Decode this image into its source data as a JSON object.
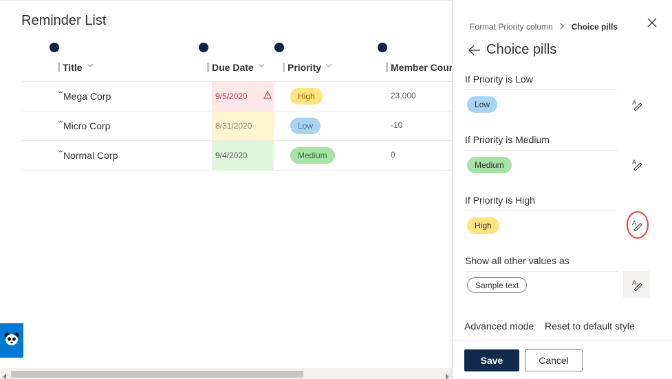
{
  "list": {
    "title": "Reminder List",
    "columns": [
      {
        "label": "Title"
      },
      {
        "label": "Due Date"
      },
      {
        "label": "Priority"
      },
      {
        "label": "Member Coun"
      }
    ],
    "rows": [
      {
        "title": "Mega Corp",
        "due": "9/5/2020",
        "due_status": "overdue",
        "priority": "High",
        "members": "23,000"
      },
      {
        "title": "Micro Corp",
        "due": "8/31/2020",
        "due_status": "soon",
        "priority": "Low",
        "members": "-10"
      },
      {
        "title": "Normal Corp",
        "due": "9/4/2020",
        "due_status": "ok",
        "priority": "Medium",
        "members": "0"
      }
    ]
  },
  "panel": {
    "breadcrumb": {
      "parent": "Format Priority column",
      "current": "Choice pills"
    },
    "title": "Choice pills",
    "sections": [
      {
        "label": "If Priority is Low",
        "pill": "Low"
      },
      {
        "label": "If Priority is Medium",
        "pill": "Medium"
      },
      {
        "label": "If Priority is High",
        "pill": "High"
      },
      {
        "label": "Show all other values as",
        "pill": "Sample text"
      }
    ],
    "links": {
      "advanced": "Advanced mode",
      "reset": "Reset to default style"
    },
    "buttons": {
      "save": "Save",
      "cancel": "Cancel"
    }
  },
  "colors": {
    "low": "#a9d3f2",
    "medium": "#a7e3a5",
    "high": "#ffe380",
    "overdue_bg": "#fde7e9",
    "soon_bg": "#fff4ce",
    "ok_bg": "#dff6dd",
    "primary_button": "#0f2a4a",
    "highlight_ring": "#e04b4b"
  },
  "icons": {
    "close": "close-icon",
    "back": "back-arrow-icon",
    "edit_style": "edit-style-icon",
    "warning": "warning-icon",
    "panda": "panda-icon"
  }
}
